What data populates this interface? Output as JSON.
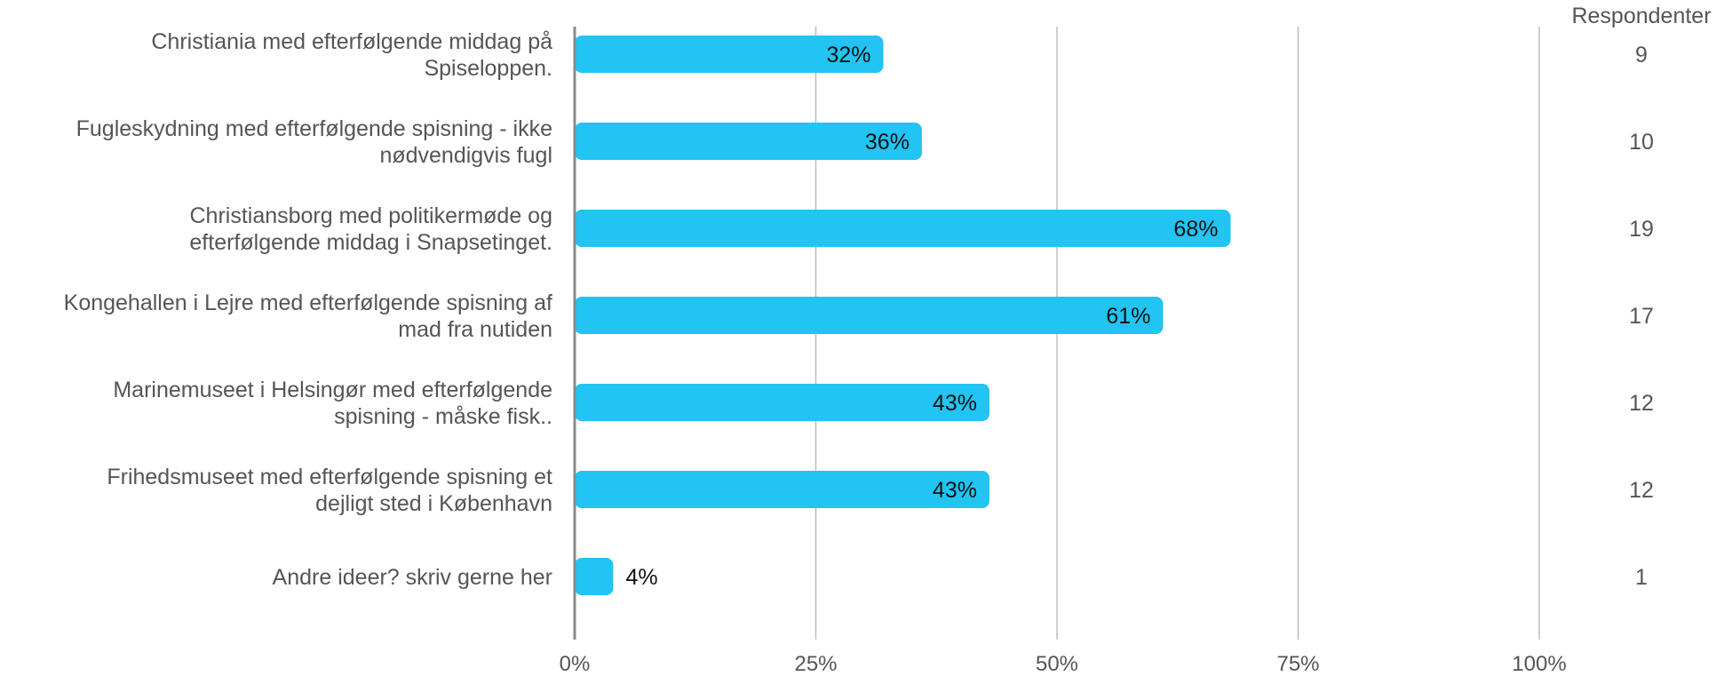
{
  "colors": {
    "bar": "#21C4F3",
    "grid": "#BDBDBD",
    "axis": "#8A8A8A",
    "text": "#555555",
    "bar_text": "#111111"
  },
  "chart_data": {
    "type": "bar",
    "orientation": "horizontal",
    "title": "",
    "xlabel": "",
    "ylabel": "",
    "xlim": [
      0,
      100
    ],
    "grid": true,
    "x_ticks": [
      0,
      25,
      50,
      75,
      100
    ],
    "x_tick_labels": [
      "0%",
      "25%",
      "50%",
      "75%",
      "100%"
    ],
    "right_column_header": "Respondenter",
    "categories": [
      [
        "Christiania med efterfølgende middag på",
        "Spiseloppen."
      ],
      [
        "Fugleskydning med efterfølgende spisning - ikke",
        "nødvendigvis fugl"
      ],
      [
        "Christiansborg med politikermøde og",
        "efterfølgende middag i Snapsetinget."
      ],
      [
        "Kongehallen i Lejre med efterfølgende spisning af",
        "mad fra nutiden"
      ],
      [
        "Marinemuseet i Helsingør med efterfølgende",
        "spisning - måske fisk.."
      ],
      [
        "Frihedsmuseet med efterfølgende spisning et",
        "dejligt sted i København"
      ],
      [
        "Andre ideer? skriv gerne her"
      ]
    ],
    "values": [
      32,
      36,
      68,
      61,
      43,
      43,
      4
    ],
    "value_labels": [
      "32%",
      "36%",
      "68%",
      "61%",
      "43%",
      "43%",
      "4%"
    ],
    "respondents": [
      "9",
      "10",
      "19",
      "17",
      "12",
      "12",
      "1"
    ]
  }
}
